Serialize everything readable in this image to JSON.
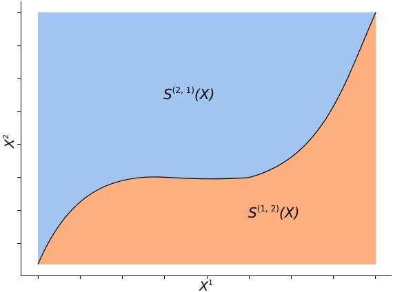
{
  "figure": {
    "upper_region": {
      "label_main": "S",
      "label_superscript": "(2, 1)",
      "label_argument": "(X)",
      "color": "#a1c5f0"
    },
    "lower_region": {
      "label_main": "S",
      "label_superscript": "(1, 2)",
      "label_argument": "(X)",
      "color": "#fdb07e"
    },
    "boundary_color": "#000000",
    "x_axis": {
      "label_main": "X",
      "label_superscript": "1"
    },
    "y_axis": {
      "label_main": "X",
      "label_superscript": "2"
    }
  }
}
